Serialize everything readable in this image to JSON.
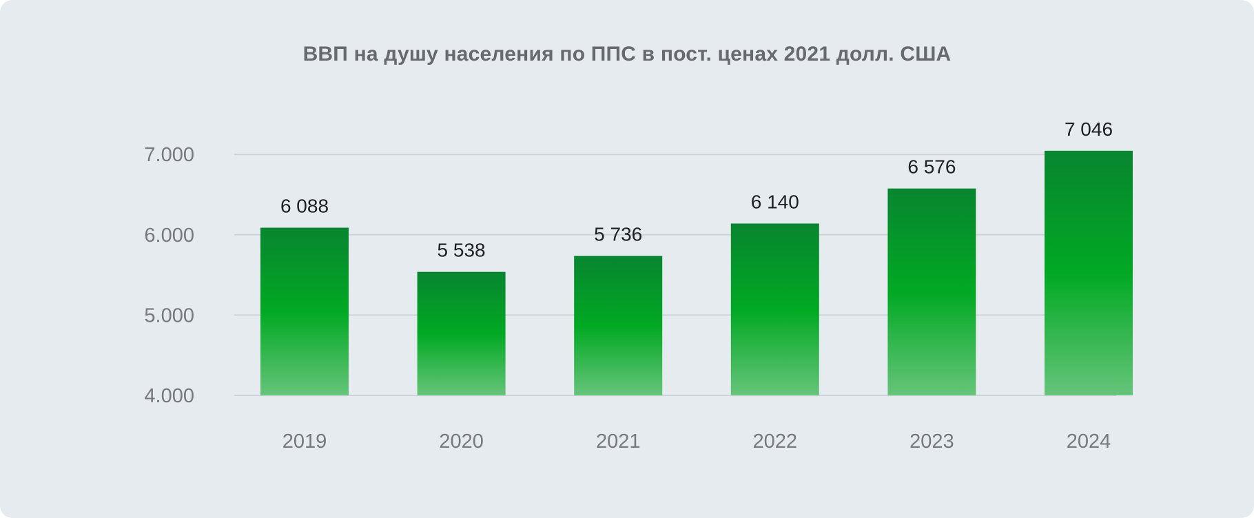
{
  "chart_data": {
    "type": "bar",
    "title": "ВВП на душу населения по ППС в пост. ценах 2021 долл. США",
    "xlabel": "",
    "ylabel": "",
    "categories": [
      "2019",
      "2020",
      "2021",
      "2022",
      "2023",
      "2024"
    ],
    "values": [
      6088,
      5538,
      5736,
      6140,
      6576,
      7046
    ],
    "value_labels": [
      "6 088",
      "5 538",
      "5 736",
      "6 140",
      "6 576",
      "7 046"
    ],
    "y_ticks": [
      4000,
      5000,
      6000,
      7000
    ],
    "y_tick_labels": [
      "4.000",
      "5.000",
      "6.000",
      "7.000"
    ],
    "ylim": [
      4000,
      7000
    ],
    "grid": true,
    "legend": "none",
    "colors": {
      "bar_top": "#088530",
      "bar_mid": "#01a923",
      "bar_bottom": "#66c47a",
      "background": "#e6ebef",
      "grid": "#cdd3d8"
    }
  }
}
